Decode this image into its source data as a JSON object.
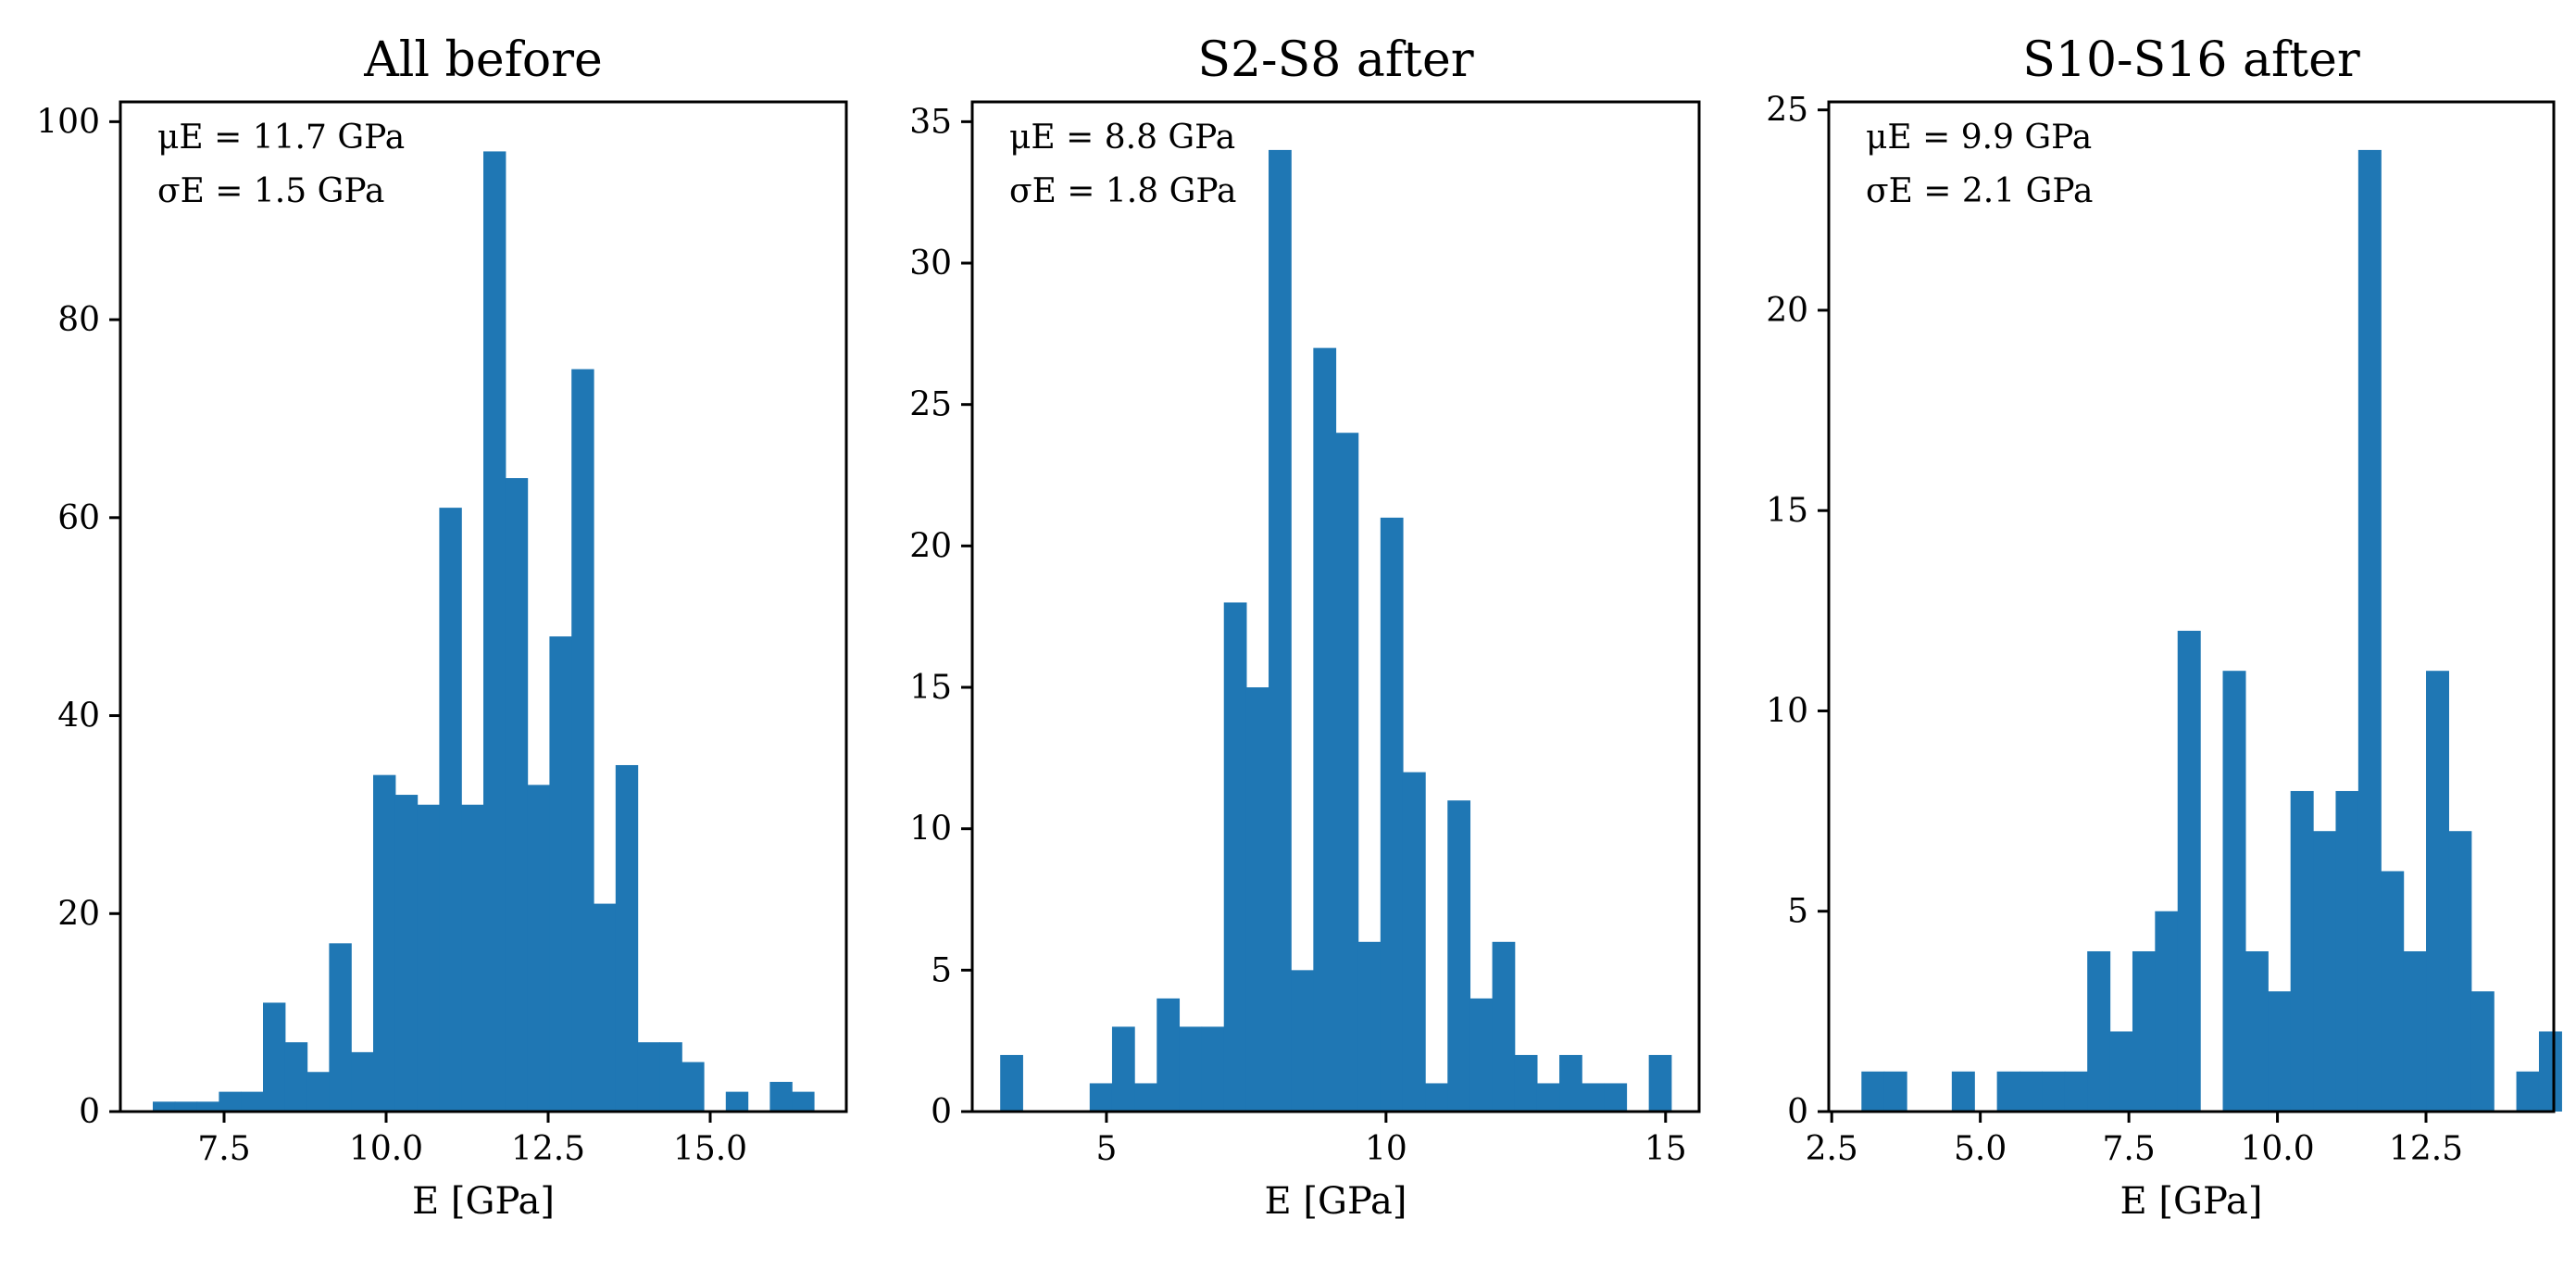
{
  "chart_data": [
    {
      "type": "bar",
      "title": "All before",
      "xlabel": "E [GPa]",
      "ylabel": "",
      "xlim": [
        5.9,
        17.1
      ],
      "ylim": [
        0,
        102
      ],
      "xticks": [
        7.5,
        10.0,
        12.5,
        15.0
      ],
      "xtick_labels": [
        "7.5",
        "10.0",
        "12.5",
        "15.0"
      ],
      "yticks": [
        0,
        20,
        40,
        60,
        80,
        100
      ],
      "ytick_labels": [
        "0",
        "20",
        "40",
        "60",
        "80",
        "100"
      ],
      "annotations": [
        "μE = 11.7 GPa",
        "σE = 1.5 GPa"
      ],
      "bin_start": 6.4,
      "bin_width": 0.34,
      "values": [
        1,
        1,
        1,
        2,
        2,
        11,
        7,
        4,
        17,
        6,
        34,
        32,
        31,
        61,
        31,
        97,
        64,
        33,
        48,
        75,
        21,
        35,
        7,
        7,
        5,
        0,
        2,
        0,
        3,
        2
      ]
    },
    {
      "type": "bar",
      "title": "S2-S8 after",
      "xlabel": "E [GPa]",
      "ylabel": "",
      "xlim": [
        2.6,
        15.6
      ],
      "ylim": [
        0,
        35.7
      ],
      "xticks": [
        5,
        10,
        15
      ],
      "xtick_labels": [
        "5",
        "10",
        "15"
      ],
      "yticks": [
        0,
        5,
        10,
        15,
        20,
        25,
        30,
        35
      ],
      "ytick_labels": [
        "0",
        "5",
        "10",
        "15",
        "20",
        "25",
        "30",
        "35"
      ],
      "annotations": [
        "μE = 8.8 GPa",
        "σE = 1.8 GPa"
      ],
      "bin_start": 3.1,
      "bin_width": 0.4,
      "values": [
        2,
        0,
        0,
        0,
        1,
        3,
        1,
        4,
        3,
        3,
        18,
        15,
        34,
        5,
        27,
        24,
        6,
        21,
        12,
        1,
        11,
        4,
        6,
        2,
        1,
        2,
        1,
        1,
        0,
        2
      ]
    },
    {
      "type": "bar",
      "title": "S10-S16 after",
      "xlabel": "E [GPa]",
      "ylabel": "",
      "xlim": [
        2.45,
        14.65
      ],
      "ylim": [
        0,
        25.2
      ],
      "xticks": [
        2.5,
        5.0,
        7.5,
        10.0,
        12.5
      ],
      "xtick_labels": [
        "2.5",
        "5.0",
        "7.5",
        "10.0",
        "12.5"
      ],
      "yticks": [
        0,
        5,
        10,
        15,
        20,
        25
      ],
      "ytick_labels": [
        "0",
        "5",
        "10",
        "15",
        "20",
        "25"
      ],
      "annotations": [
        "μE = 9.9 GPa",
        "σE = 2.1 GPa"
      ],
      "bin_start": 3.0,
      "bin_width": 0.38,
      "values": [
        1,
        1,
        0,
        0,
        1,
        0,
        1,
        1,
        1,
        1,
        4,
        2,
        4,
        5,
        12,
        0,
        11,
        4,
        3,
        8,
        7,
        8,
        24,
        6,
        4,
        11,
        7,
        3,
        0,
        1,
        2
      ]
    }
  ]
}
